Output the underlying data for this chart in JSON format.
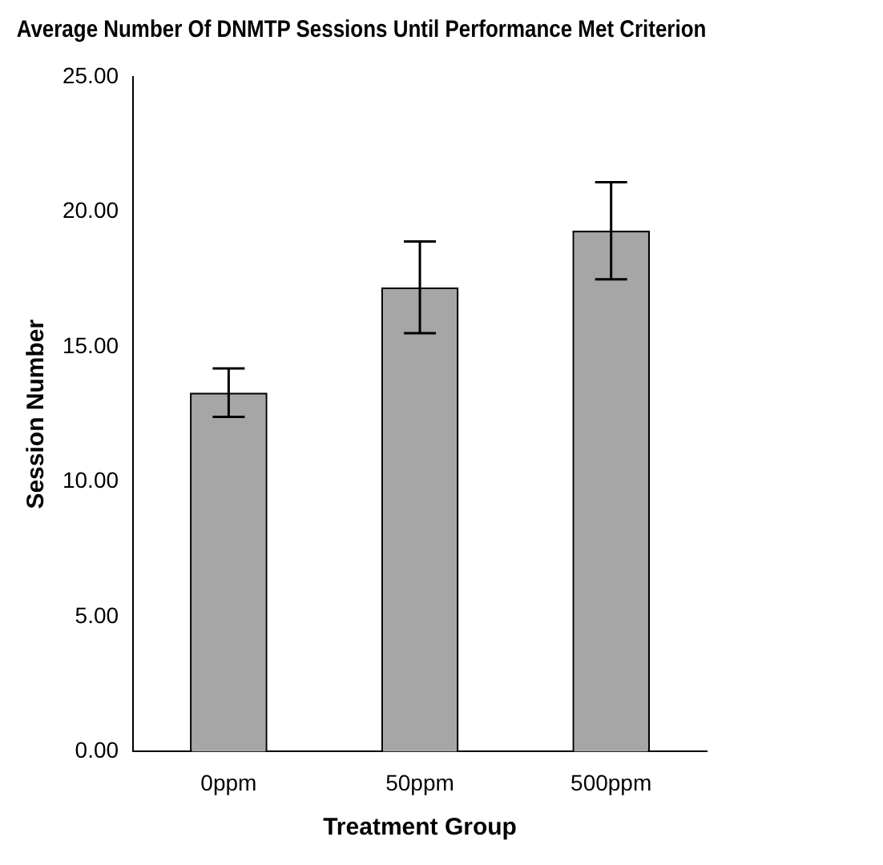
{
  "chart_data": {
    "type": "bar",
    "title": "Average Number Of DNMTP Sessions Until Performance Met Criterion",
    "xlabel": "Treatment Group",
    "ylabel": "Session Number",
    "categories": [
      "0ppm",
      "50ppm",
      "500ppm"
    ],
    "values": [
      13.3,
      17.2,
      19.3
    ],
    "errors": [
      0.9,
      1.7,
      1.8
    ],
    "color": "#a6a6a6",
    "ylim": [
      0,
      25
    ],
    "yticks": [
      {
        "value": 0,
        "label": "0.00"
      },
      {
        "value": 5,
        "label": "5.00"
      },
      {
        "value": 10,
        "label": "10.00"
      },
      {
        "value": 15,
        "label": "15.00"
      },
      {
        "value": 20,
        "label": "20.00"
      },
      {
        "value": 25,
        "label": "25.00"
      }
    ],
    "grid": false,
    "legend": false
  }
}
